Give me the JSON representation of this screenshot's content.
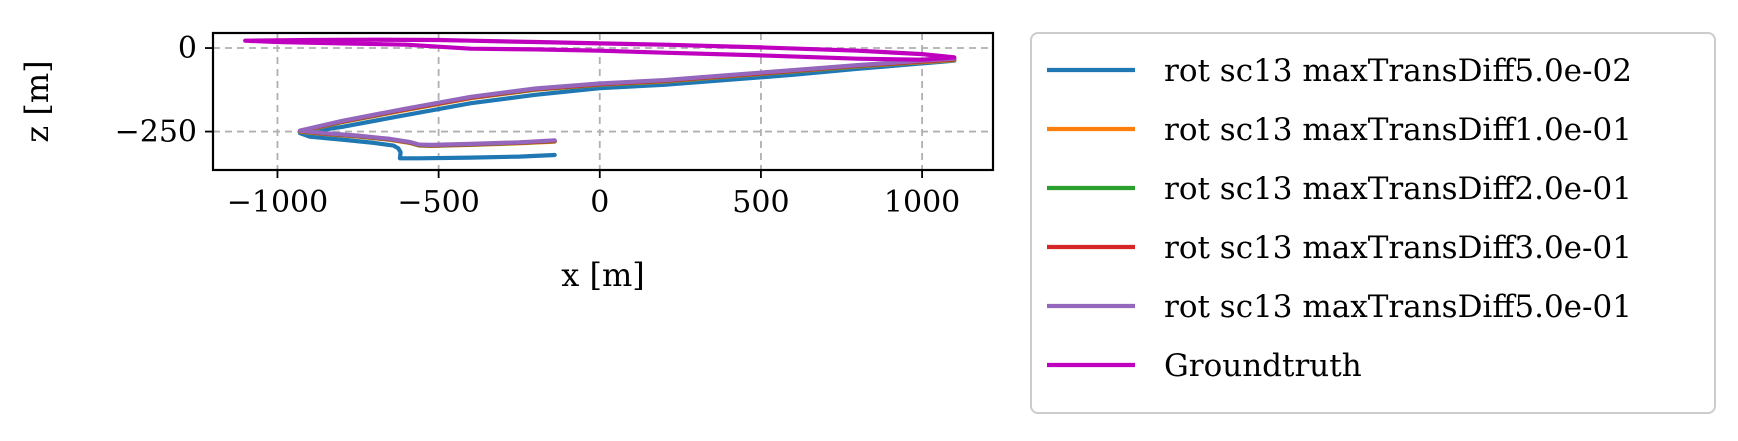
{
  "chart_data": {
    "type": "line",
    "xlabel": "x [m]",
    "ylabel": "z [m]",
    "xlim": [
      -1200,
      1220
    ],
    "ylim": [
      -365,
      45
    ],
    "grid": true,
    "legend_placement": "outside-right",
    "x_ticks": [
      -1000,
      -500,
      0,
      500,
      1000
    ],
    "x_tick_labels": [
      "−1000",
      "−500",
      "0",
      "500",
      "1000"
    ],
    "y_ticks": [
      0,
      -250
    ],
    "y_tick_labels": [
      "0",
      "−250"
    ],
    "series": [
      {
        "name": "rot sc13 maxTransDiff5.0e-02",
        "color": "#1f77b4",
        "x": [
          -140,
          -250,
          -400,
          -560,
          -620,
          -618,
          -625,
          -640,
          -700,
          -800,
          -900,
          -930,
          -800,
          -600,
          -400,
          -200,
          0,
          200,
          400,
          600,
          800,
          1000,
          1100
        ],
        "z": [
          -320,
          -325,
          -328,
          -330,
          -330,
          -312,
          -300,
          -292,
          -284,
          -274,
          -265,
          -255,
          -236,
          -200,
          -165,
          -140,
          -120,
          -110,
          -95,
          -80,
          -62,
          -46,
          -38
        ]
      },
      {
        "name": "rot sc13 maxTransDiff1.0e-01",
        "color": "#ff7f0e",
        "x": [
          -140,
          -250,
          -400,
          -520,
          -560,
          -590,
          -650,
          -750,
          -850,
          -930,
          -800,
          -600,
          -400,
          -200,
          0,
          200,
          400,
          600,
          800,
          1000,
          1100
        ],
        "z": [
          -280,
          -285,
          -290,
          -293,
          -292,
          -284,
          -275,
          -265,
          -258,
          -250,
          -222,
          -185,
          -150,
          -125,
          -110,
          -100,
          -85,
          -70,
          -55,
          -42,
          -36
        ]
      },
      {
        "name": "rot sc13 maxTransDiff2.0e-01",
        "color": "#2ca02c",
        "x": [
          -140,
          -250,
          -400,
          -520,
          -560,
          -590,
          -650,
          -750,
          -850,
          -930,
          -800,
          -600,
          -400,
          -200,
          0,
          200,
          400,
          600,
          800,
          1000,
          1100
        ],
        "z": [
          -279,
          -284,
          -289,
          -292,
          -291,
          -283,
          -274,
          -264,
          -257,
          -249,
          -221,
          -184,
          -149,
          -124,
          -109,
          -99,
          -84,
          -69,
          -54,
          -41,
          -35
        ]
      },
      {
        "name": "rot sc13 maxTransDiff3.0e-01",
        "color": "#d62728",
        "x": [
          -140,
          -250,
          -400,
          -520,
          -560,
          -590,
          -650,
          -750,
          -850,
          -930,
          -800,
          -600,
          -400,
          -200,
          0,
          200,
          400,
          600,
          800,
          1000,
          1100
        ],
        "z": [
          -278,
          -283,
          -288,
          -291,
          -290,
          -282,
          -273,
          -263,
          -256,
          -248,
          -220,
          -183,
          -148,
          -123,
          -108,
          -98,
          -83,
          -68,
          -53,
          -40,
          -34
        ]
      },
      {
        "name": "rot sc13 maxTransDiff5.0e-01",
        "color": "#9467bd",
        "x": [
          -140,
          -250,
          -400,
          -520,
          -560,
          -590,
          -650,
          -750,
          -850,
          -930,
          -800,
          -600,
          -400,
          -200,
          0,
          200,
          400,
          600,
          800,
          1000,
          1100
        ],
        "z": [
          -276,
          -282,
          -287,
          -290,
          -289,
          -281,
          -272,
          -262,
          -255,
          -247,
          -218,
          -181,
          -146,
          -121,
          -106,
          -96,
          -81,
          -66,
          -51,
          -38,
          -32
        ]
      },
      {
        "name": "Groundtruth",
        "color": "#bf00bf",
        "x": [
          -1100,
          -900,
          -700,
          -500,
          -400,
          -300,
          -200,
          0,
          200,
          500,
          800,
          1000,
          1100,
          1000,
          800,
          500,
          200,
          0,
          -200,
          -400,
          -500,
          -600,
          -800,
          -1000,
          -1100
        ],
        "z": [
          22,
          24,
          25,
          24,
          22,
          20,
          18,
          14,
          10,
          2,
          -8,
          -18,
          -28,
          -35,
          -32,
          -22,
          -14,
          -8,
          -4,
          -2,
          4,
          10,
          14,
          18,
          22
        ]
      }
    ]
  }
}
